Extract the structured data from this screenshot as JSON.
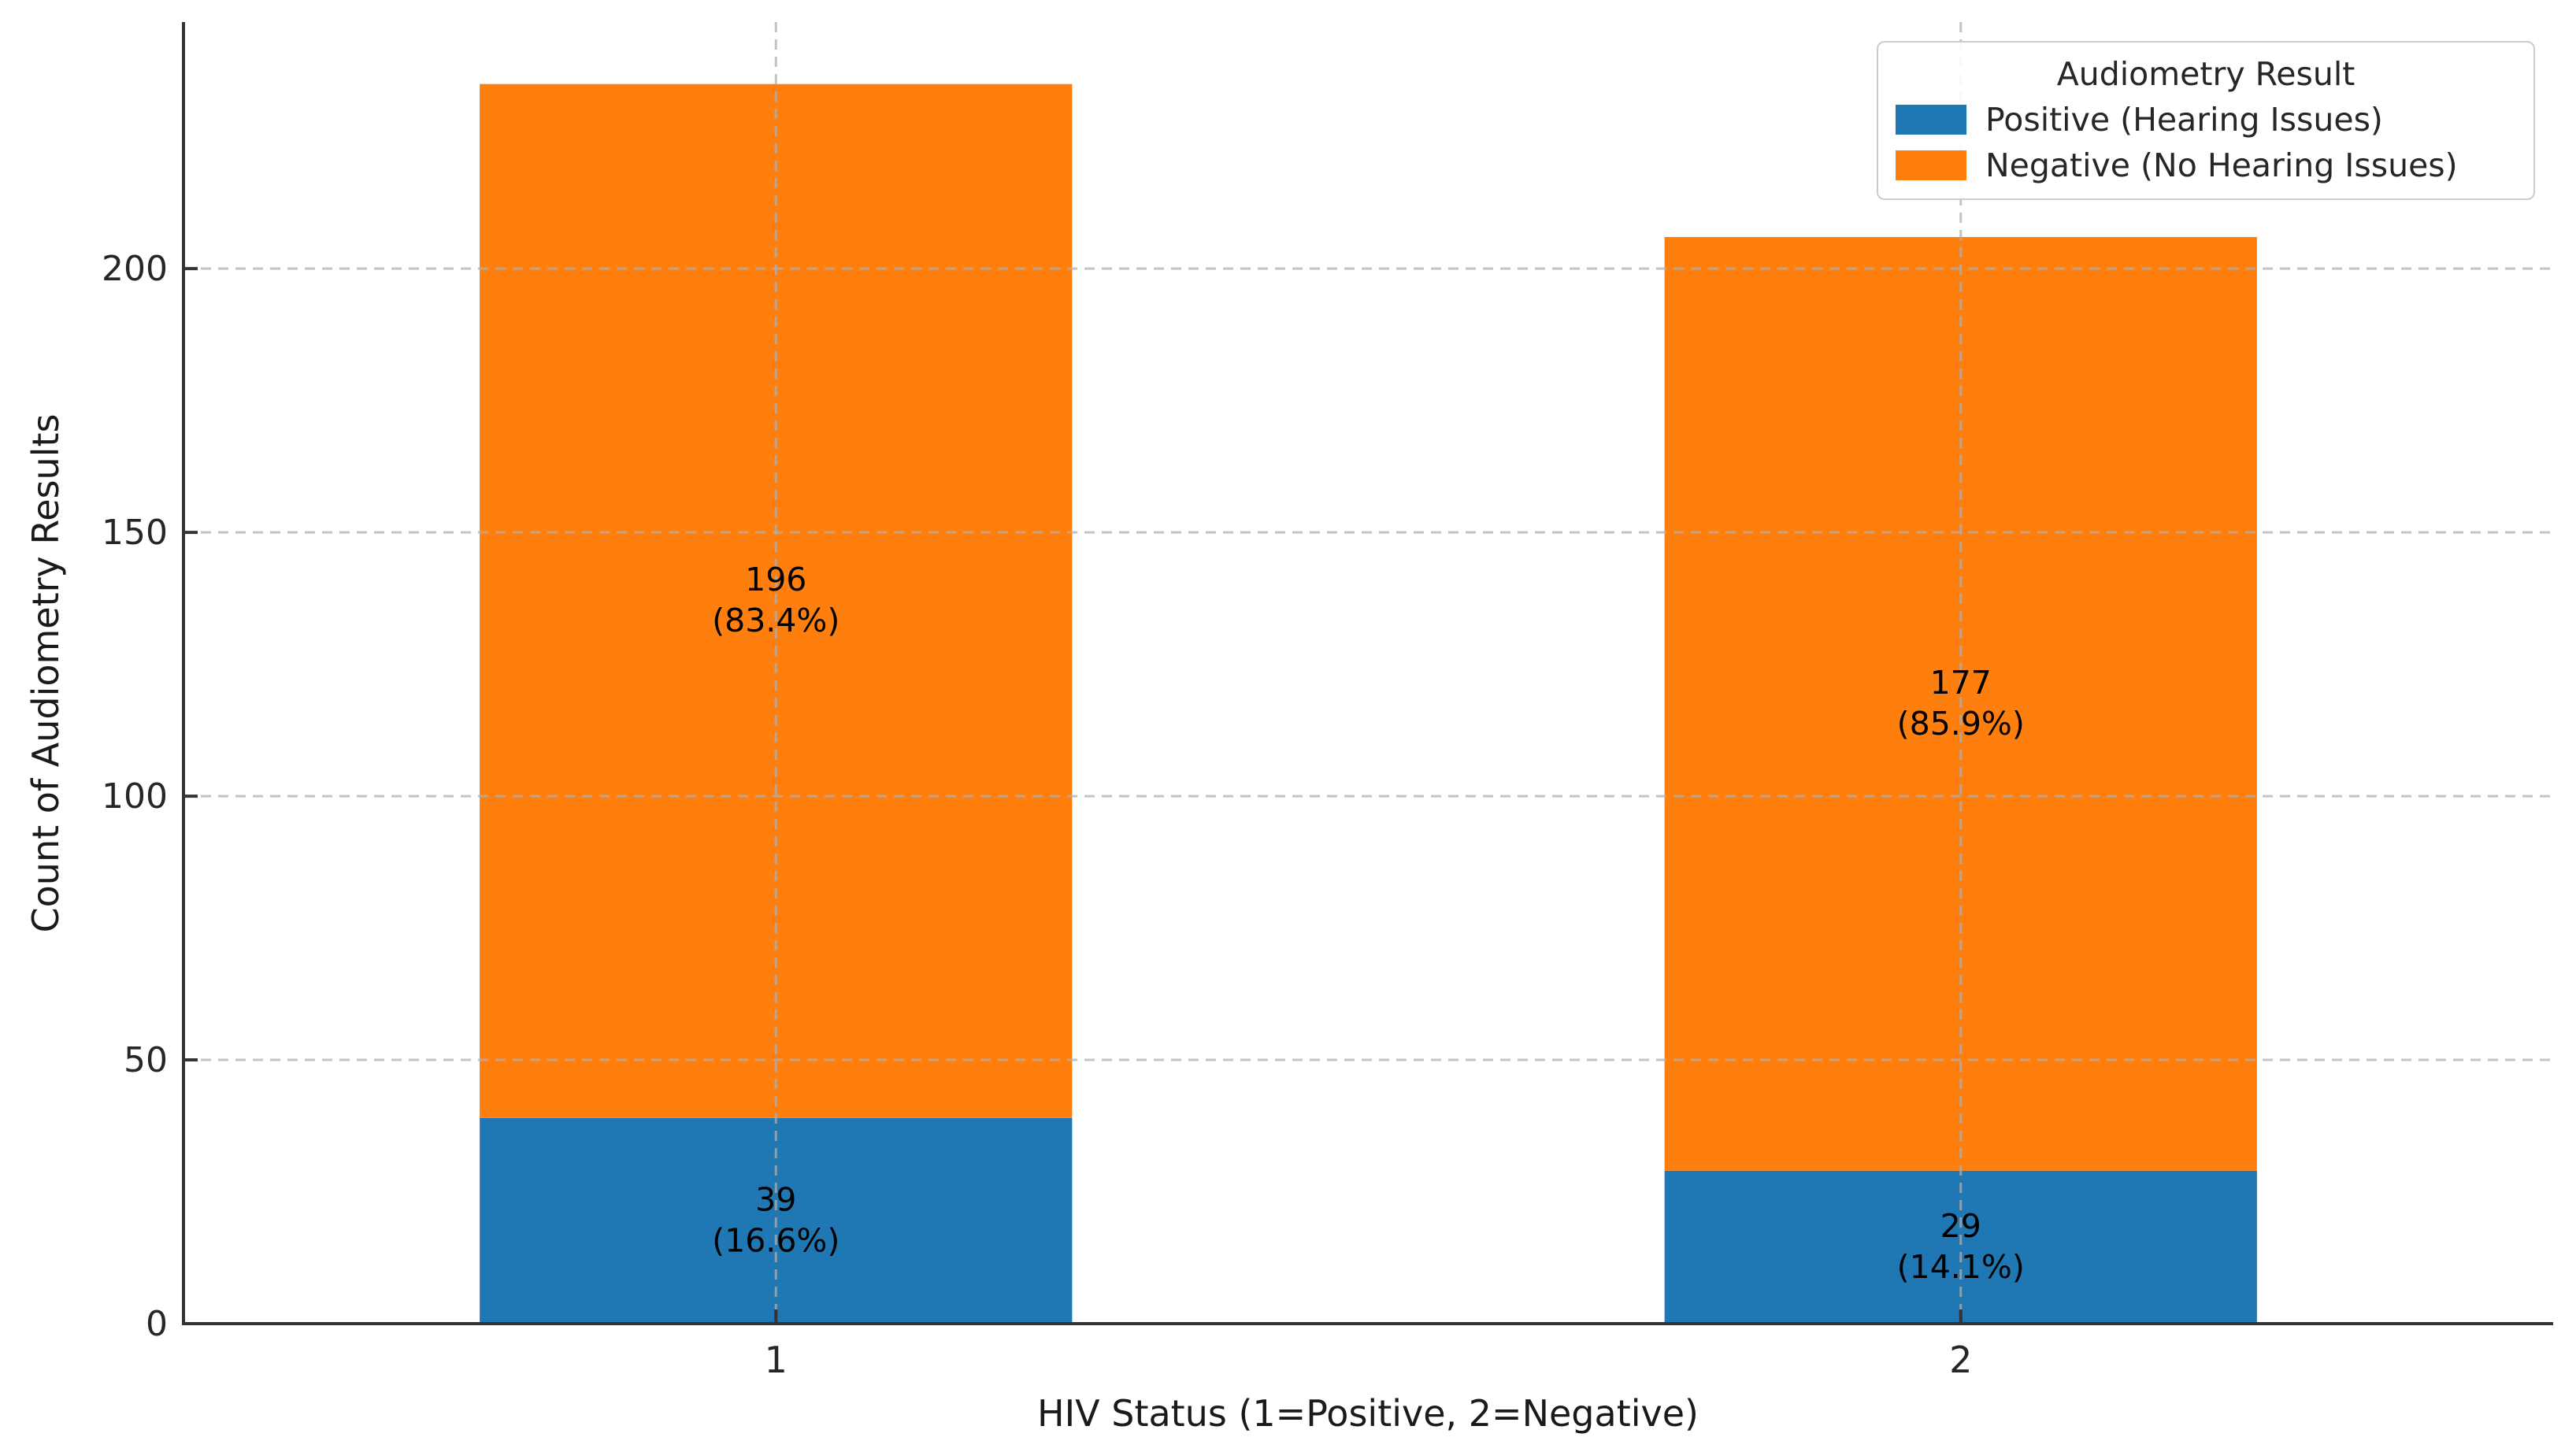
{
  "figure": {
    "background": "#ffffff",
    "spine_color": "#333333",
    "tick_text_color": "#262626",
    "grid_color": "#b0b0b0",
    "bar_label_color": "#000000"
  },
  "chart_data": {
    "type": "bar",
    "stacked": true,
    "title": "",
    "xlabel": "HIV Status (1=Positive, 2=Negative)",
    "ylabel": "Count of Audiometry Results",
    "categories": [
      "1",
      "2"
    ],
    "series": [
      {
        "name": "Positive (Hearing Issues)",
        "color": "#1f77b4",
        "values": [
          39,
          29
        ],
        "segment_labels": [
          {
            "count": "39",
            "pct": "(16.6%)"
          },
          {
            "count": "29",
            "pct": "(14.1%)"
          }
        ]
      },
      {
        "name": "Negative (No Hearing Issues)",
        "color": "#ff7f0e",
        "values": [
          196,
          177
        ],
        "segment_labels": [
          {
            "count": "196",
            "pct": "(83.4%)"
          },
          {
            "count": "177",
            "pct": "(85.9%)"
          }
        ]
      }
    ],
    "totals": [
      235,
      206
    ],
    "yticks": [
      "0",
      "50",
      "100",
      "150",
      "200"
    ],
    "ylim": [
      0,
      246.75
    ],
    "bar_width_fraction": 0.5,
    "grid": true,
    "grid_style": "dashed",
    "legend": {
      "title": "Audiometry Result",
      "position": "upper right"
    }
  }
}
